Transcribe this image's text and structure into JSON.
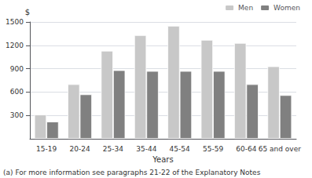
{
  "chart_data": {
    "type": "bar",
    "categories": [
      "15-19",
      "20-24",
      "25-34",
      "35-44",
      "45-54",
      "55-59",
      "60-64",
      "65 and over"
    ],
    "series": [
      {
        "name": "Men",
        "color": "#c8c8c8",
        "values": [
          310,
          700,
          1130,
          1330,
          1450,
          1270,
          1230,
          930
        ]
      },
      {
        "name": "Women",
        "color": "#808080",
        "values": [
          220,
          570,
          880,
          870,
          870,
          870,
          700,
          560
        ]
      }
    ],
    "xlabel": "Years",
    "ylabel": "$",
    "ylim": [
      0,
      1500
    ],
    "yticks": [
      300,
      600,
      900,
      1200,
      1500
    ],
    "grid": true,
    "legend": "upper right",
    "footnote": "(a) For more information see paragraphs 21-22 of the Explanatory Notes"
  }
}
